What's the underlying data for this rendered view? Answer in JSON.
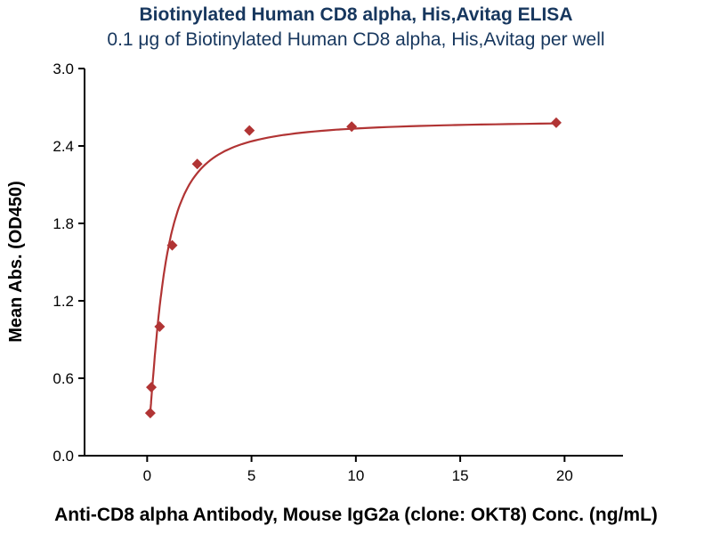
{
  "chart_data": {
    "type": "scatter",
    "title": "Biotinylated Human CD8 alpha, His,Avitag ELISA",
    "subtitle": "0.1 μg of Biotinylated Human CD8 alpha, His,Avitag per well",
    "xlabel": "Anti-CD8 alpha Antibody, Mouse IgG2a (clone: OKT8) Conc. (ng/mL)",
    "ylabel": "Mean Abs. (OD450)",
    "xlim": [
      -3,
      22.8
    ],
    "ylim": [
      0,
      3.0
    ],
    "grid": false,
    "legend": "none",
    "xticks": [
      {
        "value": 0,
        "label": "0"
      },
      {
        "value": 5,
        "label": "5"
      },
      {
        "value": 10,
        "label": "10"
      },
      {
        "value": 15,
        "label": "15"
      },
      {
        "value": 20,
        "label": "20"
      }
    ],
    "yticks": [
      {
        "value": 0.0,
        "label": "0.0"
      },
      {
        "value": 0.6,
        "label": "0.6"
      },
      {
        "value": 1.2,
        "label": "1.2"
      },
      {
        "value": 1.8,
        "label": "1.8"
      },
      {
        "value": 2.4,
        "label": "2.4"
      },
      {
        "value": 3.0,
        "label": "3.0"
      }
    ],
    "points": [
      {
        "x": 0.15,
        "y": 0.33
      },
      {
        "x": 0.2,
        "y": 0.53
      },
      {
        "x": 0.6,
        "y": 1.0
      },
      {
        "x": 1.2,
        "y": 1.63
      },
      {
        "x": 2.4,
        "y": 2.26
      },
      {
        "x": 4.9,
        "y": 2.52
      },
      {
        "x": 9.8,
        "y": 2.55
      },
      {
        "x": 19.6,
        "y": 2.58
      }
    ],
    "fit_curve": {
      "model": "4PL",
      "bottom": 0.1,
      "top": 2.6,
      "ec50": 0.75,
      "hill": 1.4,
      "x_start": 0.15,
      "x_end": 19.6
    },
    "colors": {
      "series": "#b13434",
      "axis": "#000000",
      "title_text": "#17375e",
      "label_text": "#000000"
    },
    "marker": "diamond"
  }
}
